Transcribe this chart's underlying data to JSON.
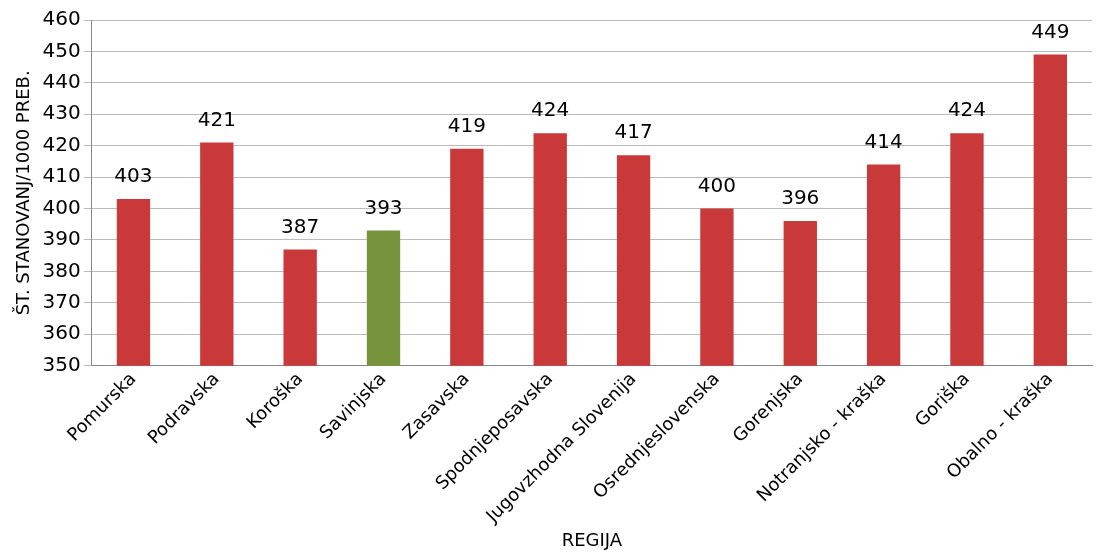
{
  "chart_data": {
    "type": "bar",
    "xlabel": "REGIJA",
    "ylabel": "ŠT. STANOVANJ/1000 PREB.",
    "categories": [
      "Pomurska",
      "Podravska",
      "Koroška",
      "Savinjska",
      "Zasavska",
      "Spodnjeposavska",
      "Jugovzhodna Slovenija",
      "Osrednjeslovenska",
      "Gorenjska",
      "Notranjsko - kraška",
      "Goriška",
      "Obalno - kraška"
    ],
    "values": [
      403,
      421,
      387,
      393,
      419,
      424,
      417,
      400,
      396,
      414,
      424,
      449
    ],
    "colors": [
      "#c9393a",
      "#c9393a",
      "#c9393a",
      "#77933c",
      "#c9393a",
      "#c9393a",
      "#c9393a",
      "#c9393a",
      "#c9393a",
      "#c9393a",
      "#c9393a",
      "#c9393a"
    ],
    "ylim": [
      350,
      460
    ],
    "yticks": [
      350,
      360,
      370,
      380,
      390,
      400,
      410,
      420,
      430,
      440,
      450,
      460
    ],
    "grid": "y",
    "data_labels": true,
    "legend": false
  }
}
